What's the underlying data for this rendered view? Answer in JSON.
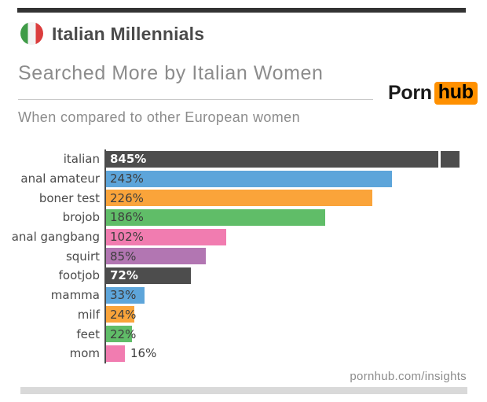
{
  "header": {
    "title": "Italian Millennials",
    "subtitle": "Searched More by Italian Women",
    "tagline": "When compared to other European women",
    "flag_colors": [
      "#3f9b47",
      "#f3f3f3",
      "#db3d3d"
    ],
    "logo": {
      "text_left": "Porn",
      "text_right": "hub",
      "accent_color": "#ff9000"
    }
  },
  "footer": {
    "link_text": "pornhub.com/insights"
  },
  "chart_data": {
    "type": "bar",
    "orientation": "horizontal",
    "title": "Searched More by Italian Women",
    "subtitle": "When compared to other European women",
    "unit": "%",
    "categories": [
      "italian",
      "anal amateur",
      "boner test",
      "brojob",
      "anal gangbang",
      "squirt",
      "footjob",
      "mamma",
      "milf",
      "feet",
      "mom"
    ],
    "values": [
      845,
      243,
      226,
      186,
      102,
      85,
      72,
      33,
      24,
      22,
      16
    ],
    "value_labels": [
      "845%",
      "243%",
      "226%",
      "186%",
      "102%",
      "85%",
      "72%",
      "33%",
      "24%",
      "22%",
      "16%"
    ],
    "palette": [
      "#4d4d4d",
      "#5da5da",
      "#faa43a",
      "#60bd68",
      "#f17cb0",
      "#b276b2"
    ],
    "palette_cycles": true,
    "dark_bar_color": "#4d4d4d",
    "axis_color": "#4a4a4a",
    "first_bar_truncated": true,
    "gridlines": false,
    "legend": "none",
    "x_axis_ticks": "none"
  }
}
